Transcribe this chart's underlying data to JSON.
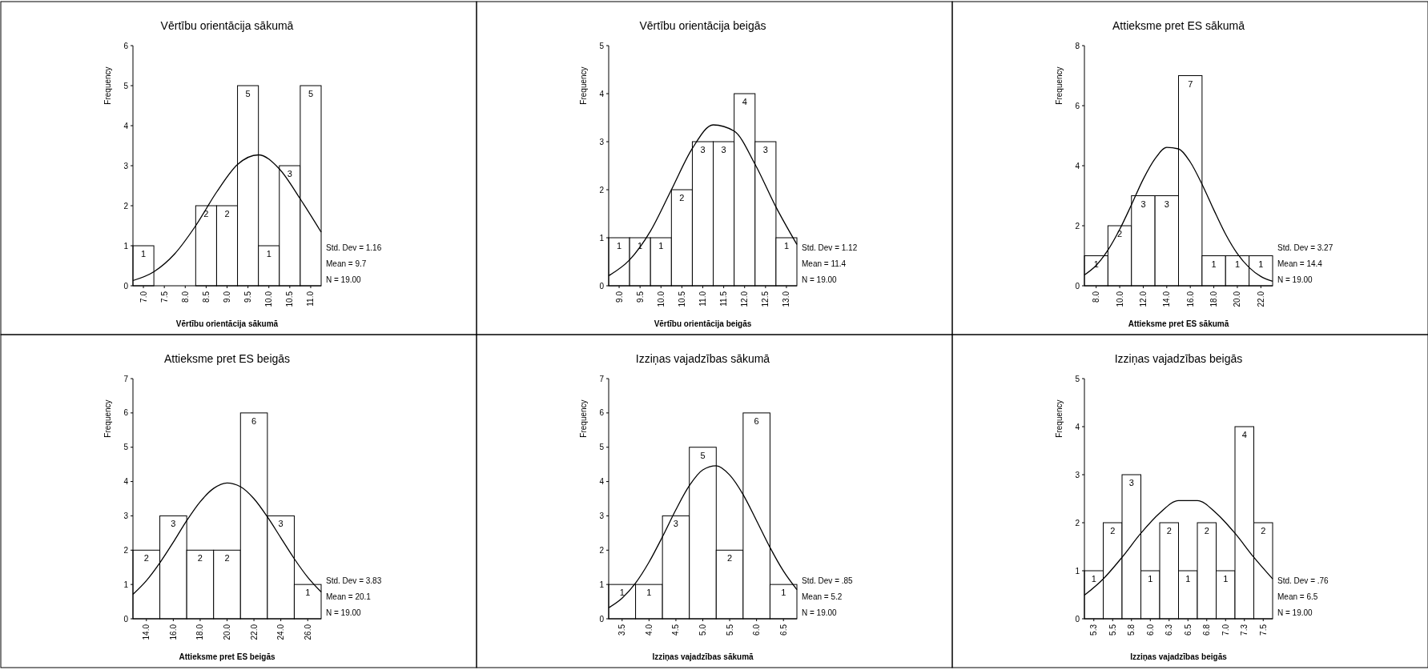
{
  "chart_data": [
    {
      "type": "histogram",
      "title": "Vērtību orientācija sākumā",
      "xlabel": "Vērtību orientācija sākumā",
      "ylabel": "Frequency",
      "bins": [
        6.75,
        7.25,
        7.75,
        8.25,
        8.75,
        9.25,
        9.75,
        10.25,
        10.75,
        11.25
      ],
      "values": [
        1,
        0,
        0,
        2,
        2,
        5,
        1,
        3,
        5
      ],
      "value_labels": [
        "1",
        null,
        null,
        "2",
        "2",
        "5",
        "1",
        "3",
        "5"
      ],
      "color": "#ffffff",
      "xlim": [
        6.75,
        11.25
      ],
      "xticks": [
        {
          "value": 7,
          "label": "7.0"
        },
        {
          "value": 7.5,
          "label": "7.5"
        },
        {
          "value": 8,
          "label": "8.0"
        },
        {
          "value": 8.5,
          "label": "8.5"
        },
        {
          "value": 9,
          "label": "9.0"
        },
        {
          "value": 9.5,
          "label": "9.5"
        },
        {
          "value": 10,
          "label": "10.0"
        },
        {
          "value": 10.5,
          "label": "10.5"
        },
        {
          "value": 11,
          "label": "11.0"
        }
      ],
      "ylim": [
        0,
        6
      ],
      "yticks": [
        0,
        1,
        2,
        3,
        4,
        5,
        6
      ],
      "annotations": [
        "Std. Dev = 1.16",
        "Mean = 9.7",
        "N = 19.00"
      ],
      "series": [
        {
          "type": "line",
          "color": "#000000",
          "x": [
            6.75,
            7.25,
            7.75,
            8.25,
            8.75,
            9.25,
            9.75,
            10.25,
            10.75,
            11.25
          ],
          "values": [
            0.13,
            0.35,
            0.8,
            1.5,
            2.34,
            3.03,
            3.27,
            2.92,
            2.17,
            1.34
          ]
        }
      ]
    },
    {
      "type": "histogram",
      "title": "Vērtību orientācija beigās",
      "xlabel": "Vērtību orientācija beigās",
      "ylabel": "Frequency",
      "bins": [
        8.75,
        9.25,
        9.75,
        10.25,
        10.75,
        11.25,
        11.75,
        12.25,
        12.75,
        13.25
      ],
      "values": [
        1,
        1,
        1,
        2,
        3,
        3,
        4,
        3,
        1
      ],
      "value_labels": [
        "1",
        "1",
        "1",
        "2",
        "3",
        "3",
        "4",
        "3",
        "1"
      ],
      "color": "#ffffff",
      "xlim": [
        8.75,
        13.25
      ],
      "xticks": [
        {
          "value": 9,
          "label": "9.0"
        },
        {
          "value": 9.5,
          "label": "9.5"
        },
        {
          "value": 10,
          "label": "10.0"
        },
        {
          "value": 10.5,
          "label": "10.5"
        },
        {
          "value": 11,
          "label": "11.0"
        },
        {
          "value": 11.5,
          "label": "11.5"
        },
        {
          "value": 12,
          "label": "12.0"
        },
        {
          "value": 12.5,
          "label": "12.5"
        },
        {
          "value": 13,
          "label": "13.0"
        }
      ],
      "ylim": [
        0,
        5
      ],
      "yticks": [
        0,
        1,
        2,
        3,
        4,
        5
      ],
      "annotations": [
        "Std. Dev = 1.12",
        "Mean = 11.4",
        "N = 19.00"
      ],
      "series": [
        {
          "type": "line",
          "color": "#000000",
          "x": [
            8.75,
            9.25,
            9.75,
            10.25,
            10.75,
            11.25,
            11.75,
            12.25,
            12.75,
            13.25
          ],
          "values": [
            0.21,
            0.54,
            1.14,
            2.0,
            2.86,
            3.35,
            3.22,
            2.53,
            1.64,
            0.86
          ]
        }
      ]
    },
    {
      "type": "histogram",
      "title": "Attieksme pret ES sākumā",
      "xlabel": "Attieksme pret ES sākumā",
      "ylabel": "Frequency",
      "bins": [
        7,
        9,
        11,
        13,
        15,
        17,
        19,
        21,
        23
      ],
      "values": [
        1,
        2,
        3,
        3,
        7,
        1,
        1,
        1
      ],
      "value_labels": [
        "1",
        "2",
        "3",
        "3",
        "7",
        "1",
        "1",
        "1"
      ],
      "color": "#ffffff",
      "xlim": [
        7,
        23
      ],
      "xticks": [
        {
          "value": 8,
          "label": "8.0"
        },
        {
          "value": 10,
          "label": "10.0"
        },
        {
          "value": 12,
          "label": "12.0"
        },
        {
          "value": 14,
          "label": "14.0"
        },
        {
          "value": 16,
          "label": "16.0"
        },
        {
          "value": 18,
          "label": "18.0"
        },
        {
          "value": 20,
          "label": "20.0"
        },
        {
          "value": 22,
          "label": "22.0"
        }
      ],
      "ylim": [
        0,
        8
      ],
      "yticks": [
        0,
        2,
        4,
        6,
        8
      ],
      "annotations": [
        "Std. Dev = 3.27",
        "Mean = 14.4",
        "N = 19.00"
      ],
      "series": [
        {
          "type": "line",
          "color": "#000000",
          "x": [
            7,
            8,
            9,
            10,
            11,
            12,
            13,
            14,
            15,
            16,
            17,
            18,
            19,
            20,
            21,
            22,
            23
          ],
          "values": [
            0.36,
            0.68,
            1.19,
            1.88,
            2.7,
            3.55,
            4.23,
            4.61,
            4.56,
            4.12,
            3.38,
            2.53,
            1.72,
            1.07,
            0.61,
            0.31,
            0.15
          ]
        }
      ]
    },
    {
      "type": "histogram",
      "title": "Attieksme pret ES beigās",
      "xlabel": "Attieksme pret ES beigās",
      "ylabel": "Frequency",
      "bins": [
        13,
        15,
        17,
        19,
        21,
        23,
        25,
        27
      ],
      "values": [
        2,
        3,
        2,
        2,
        6,
        3,
        1
      ],
      "value_labels": [
        "2",
        "3",
        "2",
        "2",
        "6",
        "3",
        "1"
      ],
      "color": "#ffffff",
      "xlim": [
        13,
        27
      ],
      "xticks": [
        {
          "value": 14,
          "label": "14.0"
        },
        {
          "value": 16,
          "label": "16.0"
        },
        {
          "value": 18,
          "label": "18.0"
        },
        {
          "value": 20,
          "label": "20.0"
        },
        {
          "value": 22,
          "label": "22.0"
        },
        {
          "value": 24,
          "label": "24.0"
        },
        {
          "value": 26,
          "label": "26.0"
        }
      ],
      "ylim": [
        0,
        7
      ],
      "yticks": [
        0,
        1,
        2,
        3,
        4,
        5,
        6,
        7
      ],
      "annotations": [
        "Std. Dev = 3.83",
        "Mean = 20.1",
        "N = 19.00"
      ],
      "series": [
        {
          "type": "line",
          "color": "#000000",
          "x": [
            13,
            14,
            15,
            16,
            17,
            18,
            19,
            20,
            21,
            22,
            23,
            24,
            25,
            26,
            27
          ],
          "values": [
            0.71,
            1.11,
            1.63,
            2.23,
            2.86,
            3.41,
            3.8,
            3.96,
            3.85,
            3.5,
            2.97,
            2.36,
            1.75,
            1.21,
            0.78
          ]
        }
      ]
    },
    {
      "type": "histogram",
      "title": "Izziņas vajadzības sākumā",
      "xlabel": "Izziņas vajadzības sākumā",
      "ylabel": "Frequency",
      "bins": [
        3.25,
        3.75,
        4.25,
        4.75,
        5.25,
        5.75,
        6.25,
        6.75
      ],
      "values": [
        1,
        1,
        3,
        5,
        2,
        6,
        1
      ],
      "value_labels": [
        "1",
        "1",
        "3",
        "5",
        "2",
        "6",
        "1"
      ],
      "color": "#ffffff",
      "xlim": [
        3.25,
        6.75
      ],
      "xticks": [
        {
          "value": 3.5,
          "label": "3.5"
        },
        {
          "value": 4,
          "label": "4.0"
        },
        {
          "value": 4.5,
          "label": "4.5"
        },
        {
          "value": 5,
          "label": "5.0"
        },
        {
          "value": 5.5,
          "label": "5.5"
        },
        {
          "value": 6,
          "label": "6.0"
        },
        {
          "value": 6.5,
          "label": "6.5"
        }
      ],
      "ylim": [
        0,
        7
      ],
      "yticks": [
        0,
        1,
        2,
        3,
        4,
        5,
        6,
        7
      ],
      "annotations": [
        "Std. Dev = .85",
        "Mean = 5.2",
        "N = 19.00"
      ],
      "series": [
        {
          "type": "line",
          "color": "#000000",
          "x": [
            3.25,
            3.5,
            3.75,
            4,
            4.25,
            4.5,
            4.75,
            5,
            5.25,
            5.5,
            5.75,
            6,
            6.25,
            6.5,
            6.75
          ],
          "values": [
            0.32,
            0.6,
            1.04,
            1.65,
            2.39,
            3.18,
            3.88,
            4.34,
            4.46,
            4.19,
            3.62,
            2.86,
            2.08,
            1.39,
            0.85
          ]
        }
      ]
    },
    {
      "type": "histogram",
      "title": "Izziņas vajadzības beigās",
      "xlabel": "Izziņas vajadzības beigās",
      "ylabel": "Frequency",
      "bins": [
        5.125,
        5.375,
        5.625,
        5.875,
        6.125,
        6.375,
        6.625,
        6.875,
        7.125,
        7.375,
        7.625
      ],
      "values": [
        1,
        2,
        3,
        1,
        2,
        1,
        2,
        1,
        4,
        2
      ],
      "value_labels": [
        "1",
        "2",
        "3",
        "1",
        "2",
        "1",
        "2",
        "1",
        "4",
        "2"
      ],
      "color": "#ffffff",
      "xlim": [
        5.125,
        7.625
      ],
      "xticks": [
        {
          "value": 5.25,
          "label": "5.3"
        },
        {
          "value": 5.5,
          "label": "5.5"
        },
        {
          "value": 5.75,
          "label": "5.8"
        },
        {
          "value": 6,
          "label": "6.0"
        },
        {
          "value": 6.25,
          "label": "6.3"
        },
        {
          "value": 6.5,
          "label": "6.5"
        },
        {
          "value": 6.75,
          "label": "6.8"
        },
        {
          "value": 7,
          "label": "7.0"
        },
        {
          "value": 7.25,
          "label": "7.3"
        },
        {
          "value": 7.5,
          "label": "7.5"
        }
      ],
      "ylim": [
        0,
        5
      ],
      "yticks": [
        0,
        1,
        2,
        3,
        4,
        5
      ],
      "annotations": [
        "Std. Dev = .76",
        "Mean = 6.5",
        "N = 19.00"
      ],
      "series": [
        {
          "type": "line",
          "color": "#000000",
          "x": [
            5.125,
            5.375,
            5.625,
            5.875,
            6.125,
            6.375,
            6.625,
            6.875,
            7.125,
            7.375,
            7.625
          ],
          "values": [
            0.49,
            0.83,
            1.28,
            1.78,
            2.2,
            2.46,
            2.46,
            2.2,
            1.78,
            1.28,
            0.83
          ]
        }
      ]
    }
  ]
}
